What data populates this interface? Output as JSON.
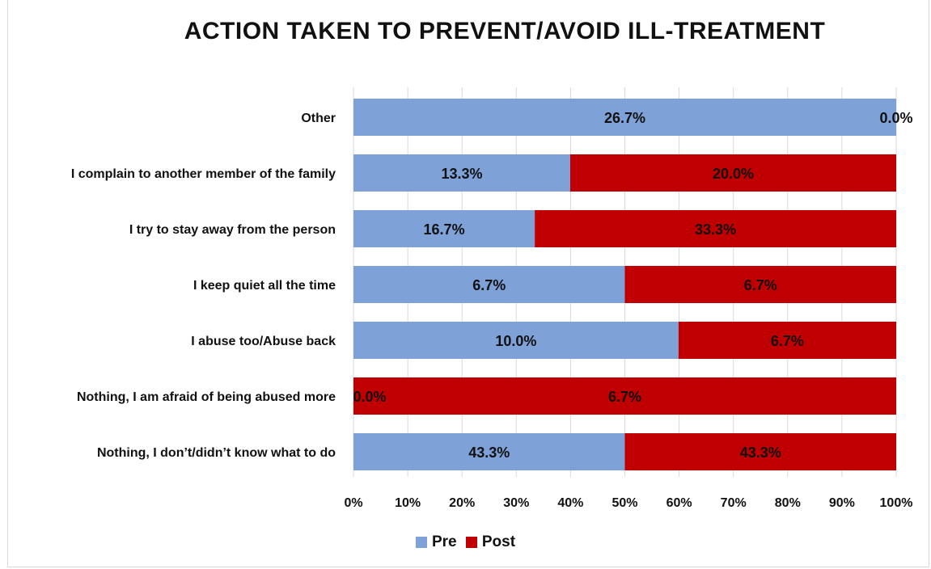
{
  "chart_data": {
    "type": "bar",
    "orientation": "horizontal",
    "stacked": "percent",
    "title": "ACTION TAKEN TO PREVENT/AVOID ILL-TREATMENT",
    "categories": [
      "Other",
      "I complain to another member of the family",
      "I try to stay away from the person",
      "I keep quiet all the time",
      "I abuse too/Abuse back",
      "Nothing, I am afraid of being abused more",
      "Nothing, I don’t/didn’t know what to do"
    ],
    "series": [
      {
        "name": "Pre",
        "color": "#7ea1d8",
        "values": [
          26.7,
          13.3,
          16.7,
          6.7,
          10.0,
          0.0,
          43.3
        ],
        "labels": [
          "26.7%",
          "13.3%",
          "16.7%",
          "6.7%",
          "10.0%",
          "0.0%",
          "43.3%"
        ]
      },
      {
        "name": "Post",
        "color": "#c00000",
        "values": [
          0.0,
          20.0,
          33.3,
          6.7,
          6.7,
          6.7,
          43.3
        ],
        "labels": [
          "0.0%",
          "20.0%",
          "33.3%",
          "6.7%",
          "6.7%",
          "6.7%",
          "43.3%"
        ]
      }
    ],
    "x_ticks": [
      "0%",
      "10%",
      "20%",
      "30%",
      "40%",
      "50%",
      "60%",
      "70%",
      "80%",
      "90%",
      "100%"
    ],
    "xlim": [
      0,
      100
    ],
    "grid": true,
    "legend_position": "bottom"
  }
}
